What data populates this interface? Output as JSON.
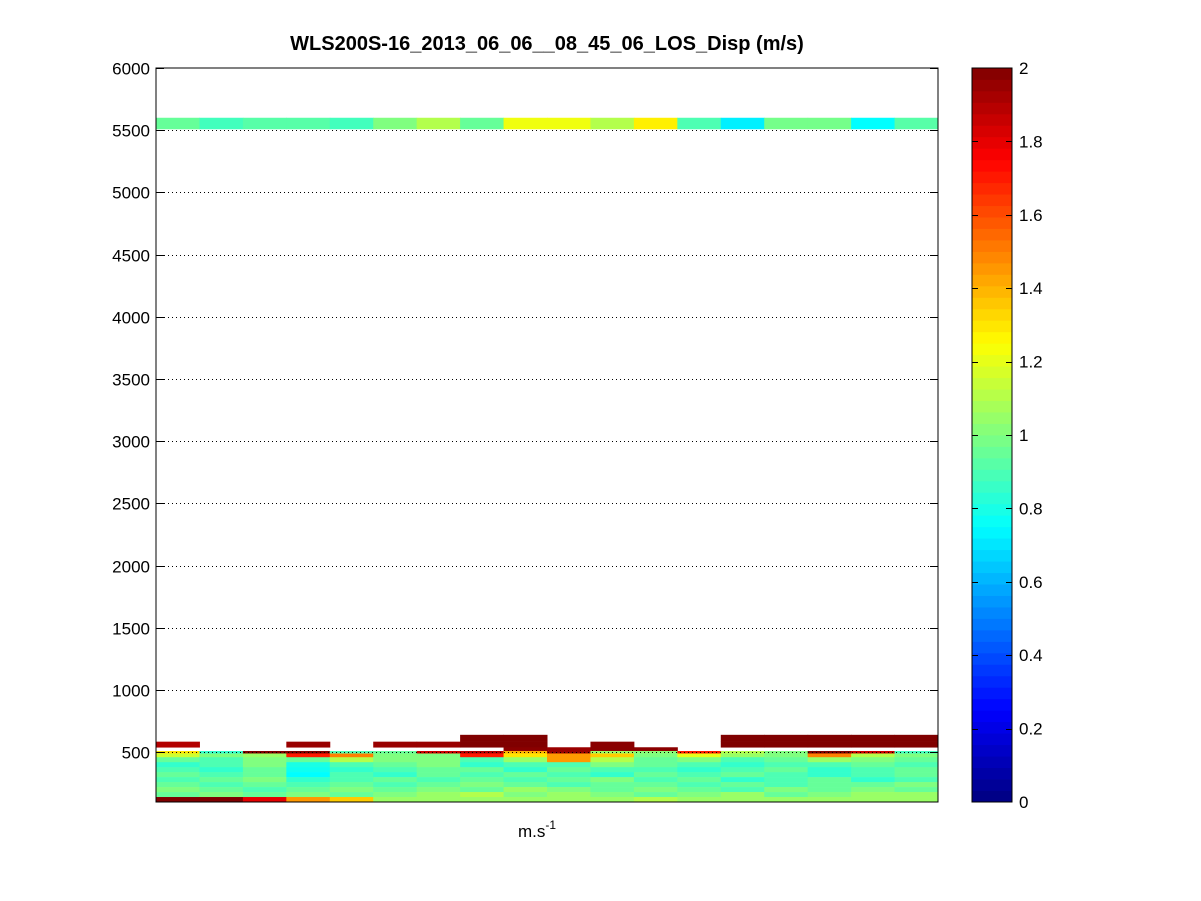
{
  "chart_data": {
    "type": "heatmap",
    "title": "WLS200S-16_2013_06_06__08_45_06_LOS_Disp (m/s)",
    "xlabel": "m.s",
    "xlabel_superscript": "-1",
    "ylabel": "",
    "ylim": [
      100,
      6000
    ],
    "yticks": [
      500,
      1000,
      1500,
      2000,
      2500,
      3000,
      3500,
      4000,
      4500,
      5000,
      5500,
      6000
    ],
    "grid": "horizontal-dotted",
    "colormap": "jet",
    "colorbar": {
      "min": 0,
      "max": 2,
      "ticks": [
        0,
        0.2,
        0.4,
        0.6,
        0.8,
        1,
        1.2,
        1.4,
        1.6,
        1.8,
        2
      ],
      "position": "right"
    },
    "n_columns": 18,
    "cells": [
      {
        "y0": 5510,
        "y1": 5600,
        "values": [
          0.95,
          0.88,
          0.92,
          0.92,
          0.88,
          1.0,
          1.1,
          0.95,
          1.22,
          1.22,
          1.1,
          1.28,
          0.9,
          0.72,
          0.98,
          0.98,
          0.75,
          0.92
        ]
      },
      {
        "y0": 585,
        "y1": 640,
        "values": [
          null,
          null,
          null,
          null,
          null,
          null,
          null,
          2.0,
          2.0,
          null,
          null,
          null,
          null,
          2.0,
          2.0,
          2.0,
          2.0,
          2.0
        ]
      },
      {
        "y0": 540,
        "y1": 585,
        "values": [
          1.9,
          null,
          null,
          1.95,
          null,
          1.95,
          1.95,
          2.0,
          2.0,
          null,
          1.98,
          null,
          null,
          2.0,
          2.0,
          2.0,
          2.0,
          2.0
        ]
      },
      {
        "y0": 510,
        "y1": 540,
        "values": [
          null,
          null,
          null,
          null,
          null,
          null,
          null,
          null,
          1.98,
          1.95,
          1.98,
          1.98,
          null,
          null,
          null,
          null,
          null,
          null
        ]
      },
      {
        "y0": 490,
        "y1": 510,
        "values": [
          1.3,
          0.85,
          2.0,
          2.0,
          0.9,
          0.95,
          1.85,
          1.9,
          1.4,
          1.95,
          1.05,
          1.02,
          1.7,
          1.1,
          1.0,
          2.0,
          1.85,
          0.88
        ]
      },
      {
        "y0": 460,
        "y1": 490,
        "values": [
          1.15,
          1.0,
          1.05,
          1.7,
          1.5,
          1.0,
          1.0,
          1.7,
          1.3,
          1.45,
          1.35,
          1.0,
          1.2,
          1.05,
          1.0,
          1.5,
          1.1,
          1.0
        ]
      },
      {
        "y0": 420,
        "y1": 460,
        "values": [
          0.95,
          0.9,
          1.0,
          0.95,
          1.1,
          1.0,
          1.0,
          0.9,
          1.05,
          1.45,
          1.1,
          0.95,
          1.0,
          0.9,
          0.95,
          1.05,
          1.0,
          0.95
        ]
      },
      {
        "y0": 380,
        "y1": 420,
        "values": [
          0.85,
          0.9,
          1.0,
          0.8,
          0.9,
          0.95,
          1.0,
          0.85,
          0.9,
          0.9,
          1.0,
          0.95,
          0.9,
          0.85,
          0.9,
          0.9,
          0.95,
          0.9
        ]
      },
      {
        "y0": 340,
        "y1": 380,
        "values": [
          0.9,
          0.85,
          0.95,
          0.78,
          0.85,
          0.9,
          0.95,
          0.95,
          0.85,
          0.95,
          0.9,
          0.9,
          0.85,
          0.9,
          0.95,
          0.85,
          0.9,
          0.95
        ]
      },
      {
        "y0": 300,
        "y1": 340,
        "values": [
          0.95,
          0.9,
          0.95,
          0.75,
          0.9,
          0.85,
          0.95,
          0.9,
          0.95,
          0.9,
          0.85,
          0.95,
          0.9,
          0.95,
          0.9,
          0.85,
          0.9,
          0.95
        ]
      },
      {
        "y0": 260,
        "y1": 300,
        "values": [
          0.9,
          0.95,
          1.0,
          0.85,
          0.9,
          0.95,
          0.9,
          0.95,
          0.9,
          0.95,
          1.0,
          0.9,
          0.95,
          0.85,
          0.9,
          0.95,
          0.85,
          0.9
        ]
      },
      {
        "y0": 220,
        "y1": 260,
        "values": [
          0.95,
          0.9,
          0.95,
          0.9,
          0.95,
          0.9,
          0.95,
          1.0,
          0.95,
          0.9,
          0.95,
          0.95,
          0.9,
          0.95,
          0.9,
          0.95,
          0.95,
          1.0
        ]
      },
      {
        "y0": 180,
        "y1": 220,
        "values": [
          1.0,
          0.95,
          0.9,
          0.95,
          1.0,
          0.95,
          1.0,
          0.95,
          1.05,
          1.0,
          0.95,
          1.0,
          0.95,
          0.9,
          1.0,
          0.95,
          1.0,
          0.95
        ]
      },
      {
        "y0": 140,
        "y1": 180,
        "values": [
          0.95,
          1.0,
          0.95,
          1.0,
          0.95,
          1.0,
          1.05,
          1.1,
          1.0,
          1.05,
          1.0,
          0.95,
          1.0,
          1.05,
          0.95,
          1.0,
          1.05,
          1.05
        ]
      },
      {
        "y0": 100,
        "y1": 140,
        "values": [
          2.0,
          2.0,
          1.8,
          1.45,
          1.35,
          1.05,
          1.05,
          1.05,
          1.05,
          1.05,
          1.05,
          1.1,
          1.05,
          1.05,
          1.05,
          1.05,
          1.05,
          1.05
        ]
      }
    ]
  }
}
